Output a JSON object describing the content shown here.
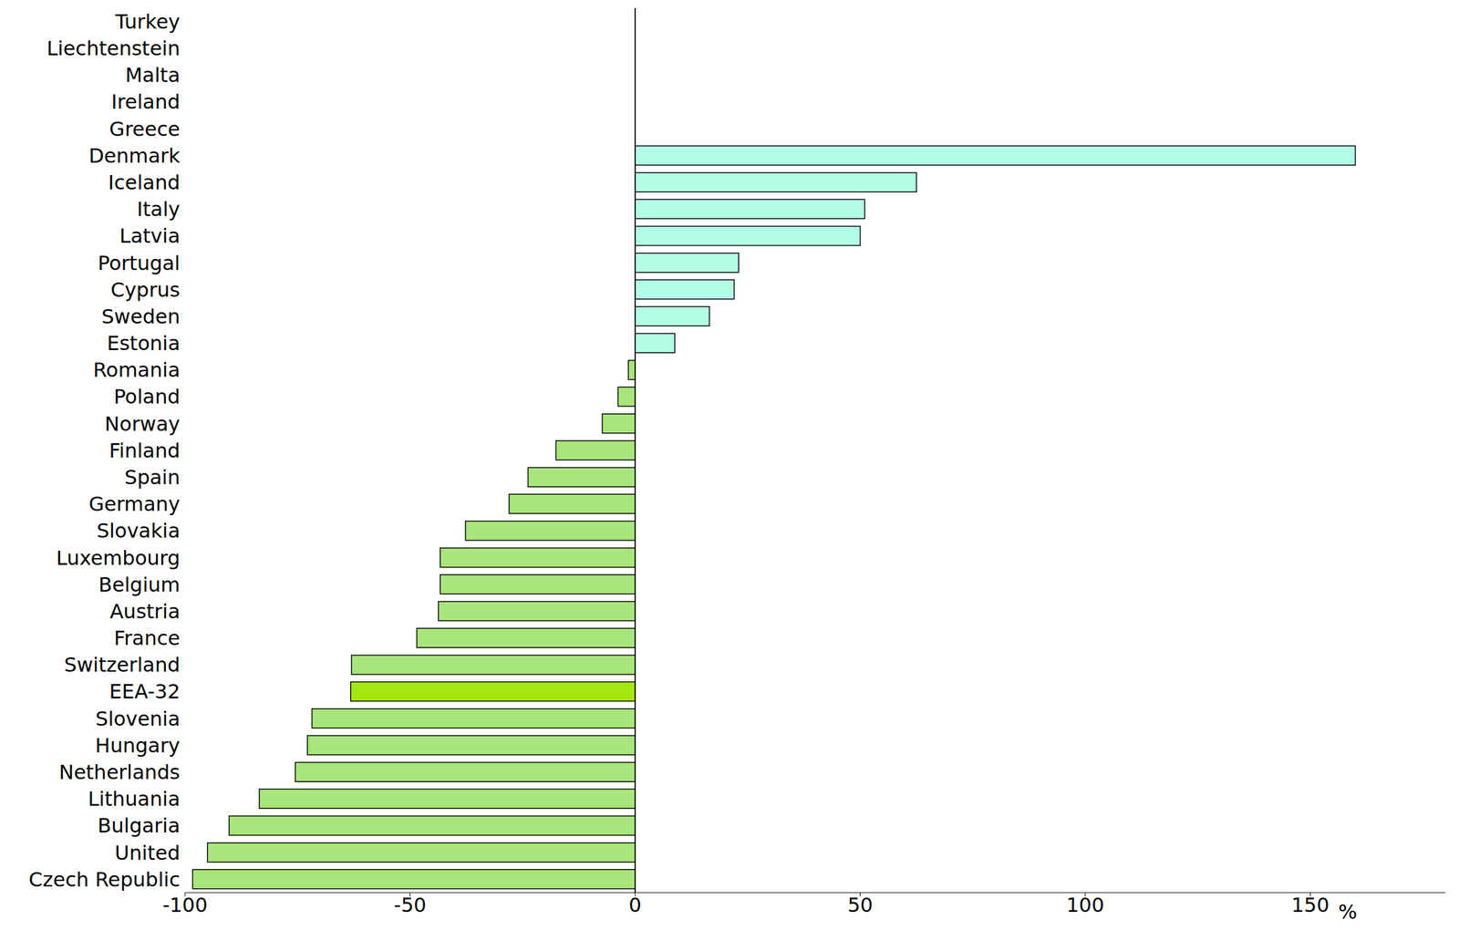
{
  "chart_data": {
    "type": "bar",
    "orientation": "horizontal",
    "x_label": "%",
    "categories": [
      "Turkey",
      "Liechtenstein",
      "Malta",
      "Ireland",
      "Greece",
      "Denmark",
      "Iceland",
      "Italy",
      "Latvia",
      "Portugal",
      "Cyprus",
      "Sweden",
      "Estonia",
      "Romania",
      "Poland",
      "Norway",
      "Finland",
      "Spain",
      "Germany",
      "Slovakia",
      "Luxembourg",
      "Belgium",
      "Austria",
      "France",
      "Switzerland",
      "EEA-32",
      "Slovenia",
      "Hungary",
      "Netherlands",
      "Lithuania",
      "Bulgaria",
      "United",
      "Czech Republic"
    ],
    "values": [
      null,
      null,
      null,
      null,
      null,
      160,
      62.5,
      51,
      50,
      23,
      22,
      16.5,
      8.8,
      -1.5,
      -3.8,
      -7.3,
      -17.6,
      -23.8,
      -28,
      -37.7,
      -43.3,
      -43.3,
      -43.7,
      -48.5,
      -63,
      -63.2,
      -71.8,
      -72.8,
      -75.5,
      -83.5,
      -90.2,
      -95,
      -98.3
    ],
    "colors": [
      "#b3fde6",
      "#b3fde6",
      "#b3fde6",
      "#b3fde6",
      "#b3fde6",
      "#b3fde6",
      "#b3fde6",
      "#b3fde6",
      "#b3fde6",
      "#b3fde6",
      "#b3fde6",
      "#b3fde6",
      "#b3fde6",
      "#a8e57a",
      "#a8e57a",
      "#a8e57a",
      "#a8e57a",
      "#a8e57a",
      "#a8e57a",
      "#a8e57a",
      "#a8e57a",
      "#a8e57a",
      "#a8e57a",
      "#a8e57a",
      "#a8e57a",
      "#a5e811",
      "#a8e57a",
      "#a8e57a",
      "#a8e57a",
      "#a8e57a",
      "#a8e57a",
      "#a8e57a",
      "#a8e57a"
    ],
    "xlim": [
      -100,
      180
    ],
    "xticks": [
      -100,
      -50,
      0,
      50,
      100,
      150
    ],
    "grid": false
  }
}
